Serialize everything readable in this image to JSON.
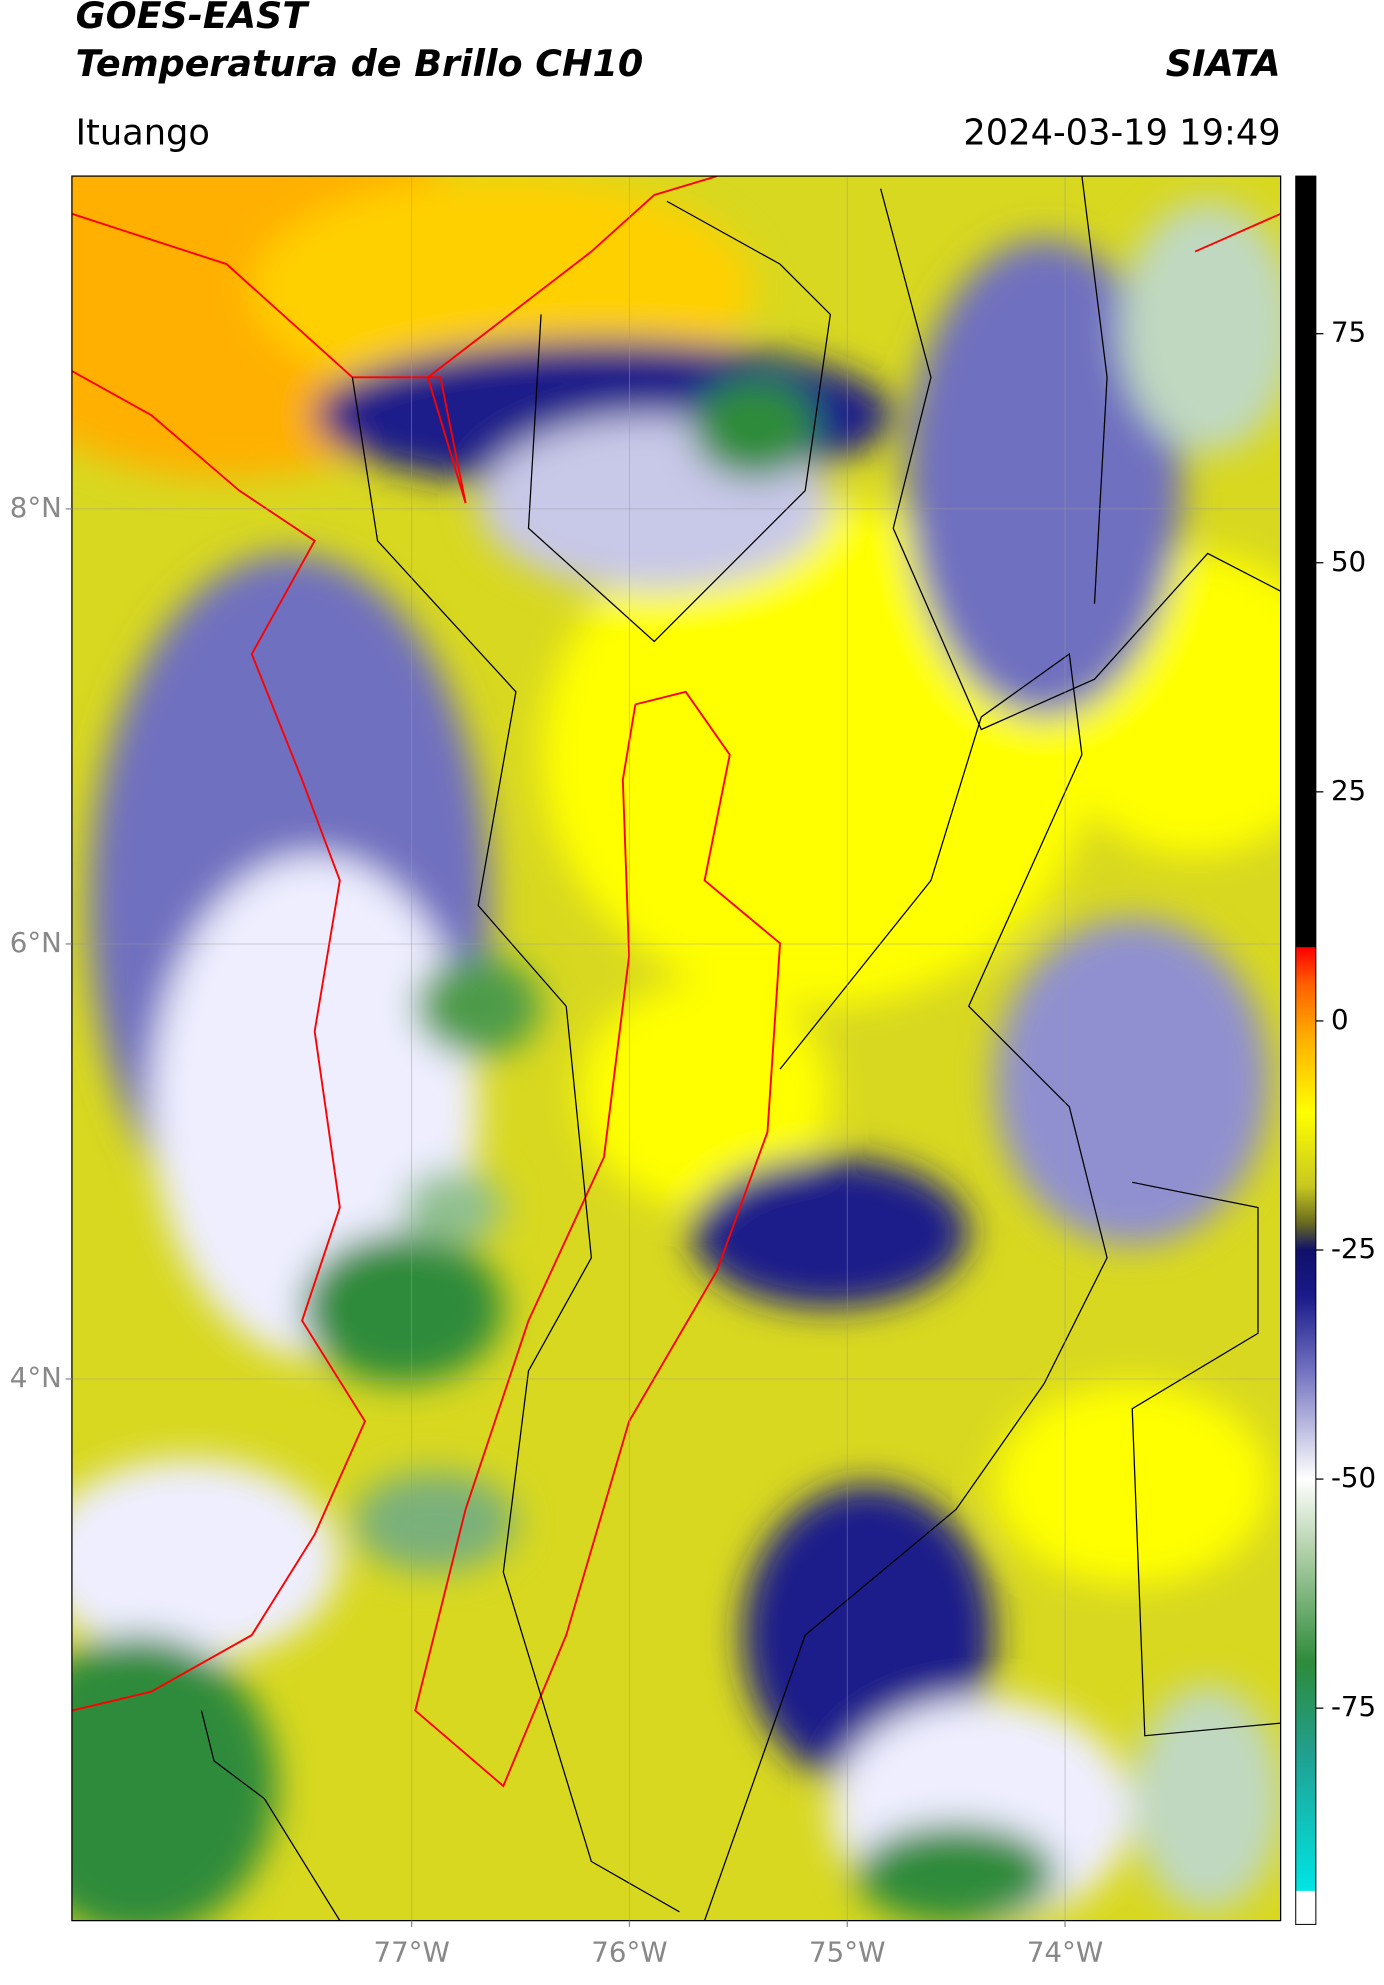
{
  "header": {
    "title": "GOES-EAST",
    "subtitle": "Temperatura de Brillo CH10",
    "brand": "SIATA",
    "location": "Ituango",
    "datetime": "2024-03-19 19:49"
  },
  "map": {
    "xlim": [
      -78.56,
      -73.01
    ],
    "ylim": [
      1.51,
      9.53
    ],
    "xticks": [
      {
        "value": -77,
        "label": "77°W"
      },
      {
        "value": -76,
        "label": "76°W"
      },
      {
        "value": -75,
        "label": "75°W"
      },
      {
        "value": -74,
        "label": "74°W"
      }
    ],
    "yticks": [
      {
        "value": 8,
        "label": "8°N"
      },
      {
        "value": 6,
        "label": "6°N"
      },
      {
        "value": 4,
        "label": "4°N"
      }
    ],
    "grid": true
  },
  "colorbar": {
    "clim": [
      -98.6,
      92.2
    ],
    "ticks": [
      75,
      50,
      25,
      0,
      -25,
      -50,
      -75
    ],
    "stops": [
      {
        "value": -98.6,
        "color": "#ffffff"
      },
      {
        "value": -95,
        "color": "#ffffff"
      },
      {
        "value": -94.9,
        "color": "#00e5e5"
      },
      {
        "value": -80,
        "color": "#20a090"
      },
      {
        "value": -70,
        "color": "#2e8b3a"
      },
      {
        "value": -58,
        "color": "#b0d0a8"
      },
      {
        "value": -50,
        "color": "#ffffff"
      },
      {
        "value": -38,
        "color": "#7070c0"
      },
      {
        "value": -30,
        "color": "#1a1a8a"
      },
      {
        "value": -25,
        "color": "#10106a"
      },
      {
        "value": -22,
        "color": "#6b6b20"
      },
      {
        "value": -18,
        "color": "#c8c820"
      },
      {
        "value": -10,
        "color": "#ffff00"
      },
      {
        "value": -2,
        "color": "#ffb000"
      },
      {
        "value": 4,
        "color": "#ff6000"
      },
      {
        "value": 8,
        "color": "#ff0000"
      },
      {
        "value": 8.1,
        "color": "#000000"
      },
      {
        "value": 92.2,
        "color": "#000000"
      }
    ]
  }
}
